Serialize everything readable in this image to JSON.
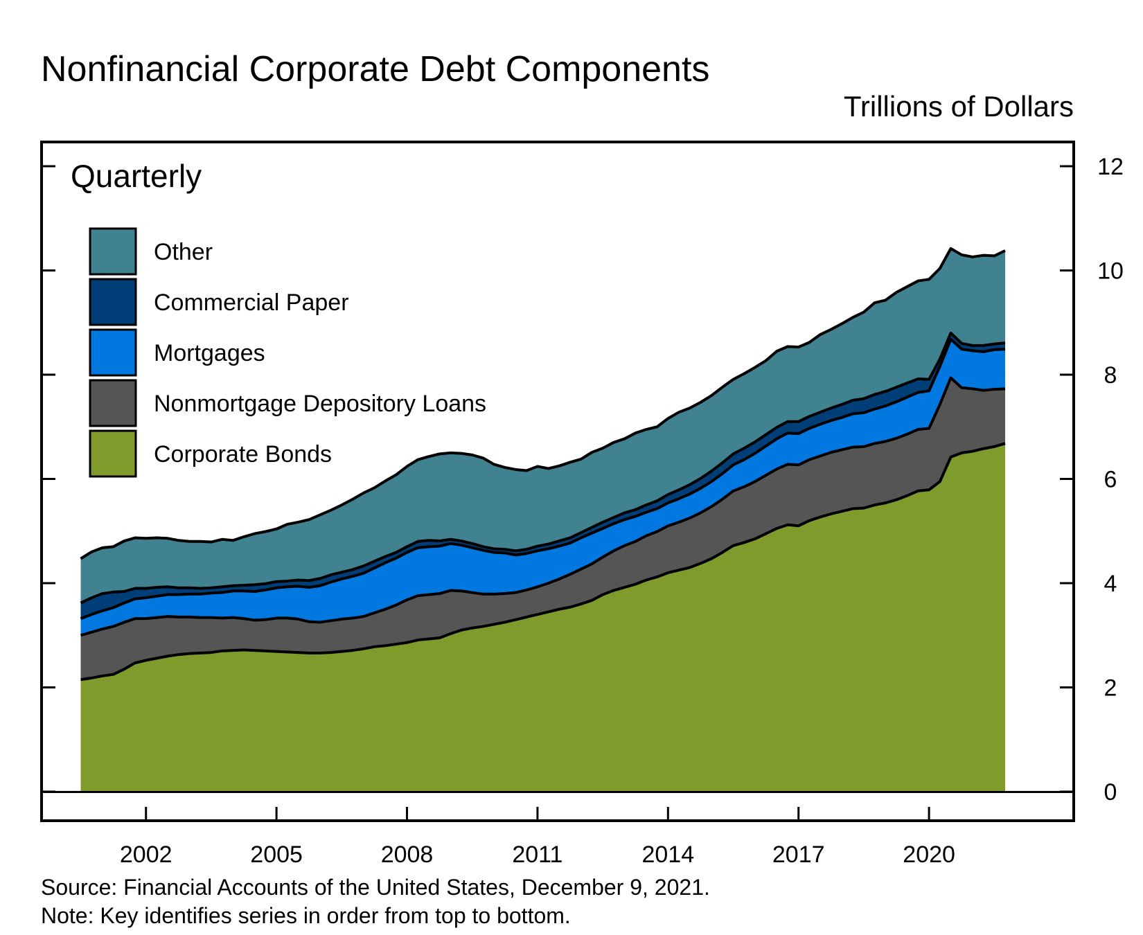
{
  "chart_data": {
    "type": "area",
    "stacked": true,
    "title": "Nonfinancial Corporate Debt Components",
    "units": "Trillions of Dollars",
    "frequency_label": "Quarterly",
    "ylim": [
      0,
      12.5
    ],
    "yticks": [
      0,
      2,
      4,
      6,
      8,
      10,
      12
    ],
    "xlim": [
      1999.6,
      2023.3
    ],
    "xticks": [
      2002,
      2005,
      2008,
      2011,
      2014,
      2017,
      2020
    ],
    "xtick_labels": [
      "2002",
      "2005",
      "2008",
      "2011",
      "2014",
      "2017",
      "2020"
    ],
    "grid": false,
    "legend_position": "top-left",
    "legend_note": "Key identifies series in order from top to bottom.",
    "x": [
      2000.5,
      2000.75,
      2001,
      2001.25,
      2001.5,
      2001.75,
      2002,
      2002.25,
      2002.5,
      2002.75,
      2003,
      2003.25,
      2003.5,
      2003.75,
      2004,
      2004.25,
      2004.5,
      2004.75,
      2005,
      2005.25,
      2005.5,
      2005.75,
      2006,
      2006.25,
      2006.5,
      2006.75,
      2007,
      2007.25,
      2007.5,
      2007.75,
      2008,
      2008.25,
      2008.5,
      2008.75,
      2009,
      2009.25,
      2009.5,
      2009.75,
      2010,
      2010.25,
      2010.5,
      2010.75,
      2011,
      2011.25,
      2011.5,
      2011.75,
      2012,
      2012.25,
      2012.5,
      2012.75,
      2013,
      2013.25,
      2013.5,
      2013.75,
      2014,
      2014.25,
      2014.5,
      2014.75,
      2015,
      2015.25,
      2015.5,
      2015.75,
      2016,
      2016.25,
      2016.5,
      2016.75,
      2017,
      2017.25,
      2017.5,
      2017.75,
      2018,
      2018.25,
      2018.5,
      2018.75,
      2019,
      2019.25,
      2019.5,
      2019.75,
      2020,
      2020.25,
      2020.5,
      2020.75,
      2021,
      2021.25,
      2021.5,
      2021.75
    ],
    "series": [
      {
        "name": "Corporate Bonds",
        "color": "#7f9b2c",
        "values": [
          2.15,
          2.18,
          2.22,
          2.25,
          2.35,
          2.47,
          2.52,
          2.56,
          2.6,
          2.63,
          2.65,
          2.66,
          2.67,
          2.7,
          2.71,
          2.72,
          2.71,
          2.7,
          2.69,
          2.68,
          2.67,
          2.66,
          2.66,
          2.67,
          2.69,
          2.71,
          2.74,
          2.78,
          2.8,
          2.83,
          2.86,
          2.91,
          2.93,
          2.95,
          3.03,
          3.1,
          3.14,
          3.17,
          3.21,
          3.25,
          3.3,
          3.35,
          3.4,
          3.45,
          3.5,
          3.54,
          3.6,
          3.67,
          3.78,
          3.86,
          3.92,
          3.98,
          4.06,
          4.12,
          4.2,
          4.25,
          4.3,
          4.38,
          4.47,
          4.59,
          4.72,
          4.78,
          4.85,
          4.95,
          5.05,
          5.12,
          5.1,
          5.2,
          5.27,
          5.33,
          5.38,
          5.43,
          5.44,
          5.5,
          5.54,
          5.6,
          5.68,
          5.77,
          5.79,
          5.95,
          6.42,
          6.5,
          6.53,
          6.58,
          6.62,
          6.68
        ]
      },
      {
        "name": "Nonmortgage Depository Loans",
        "color": "#555555",
        "values": [
          0.85,
          0.88,
          0.9,
          0.92,
          0.9,
          0.85,
          0.8,
          0.78,
          0.76,
          0.72,
          0.7,
          0.68,
          0.67,
          0.63,
          0.63,
          0.6,
          0.58,
          0.6,
          0.64,
          0.65,
          0.64,
          0.6,
          0.59,
          0.61,
          0.62,
          0.62,
          0.62,
          0.65,
          0.7,
          0.75,
          0.82,
          0.85,
          0.85,
          0.85,
          0.83,
          0.75,
          0.68,
          0.62,
          0.58,
          0.55,
          0.52,
          0.52,
          0.53,
          0.55,
          0.58,
          0.63,
          0.67,
          0.7,
          0.72,
          0.76,
          0.8,
          0.82,
          0.85,
          0.87,
          0.9,
          0.92,
          0.95,
          0.97,
          1.0,
          1.02,
          1.05,
          1.07,
          1.1,
          1.12,
          1.14,
          1.16,
          1.17,
          1.17,
          1.17,
          1.18,
          1.18,
          1.18,
          1.18,
          1.18,
          1.18,
          1.18,
          1.18,
          1.18,
          1.18,
          1.48,
          1.52,
          1.25,
          1.2,
          1.12,
          1.1,
          1.05
        ]
      },
      {
        "name": "Mortgages",
        "color": "#0078e0",
        "values": [
          0.32,
          0.34,
          0.35,
          0.36,
          0.37,
          0.38,
          0.4,
          0.41,
          0.42,
          0.43,
          0.44,
          0.45,
          0.47,
          0.49,
          0.51,
          0.53,
          0.55,
          0.57,
          0.58,
          0.6,
          0.63,
          0.66,
          0.7,
          0.74,
          0.77,
          0.8,
          0.83,
          0.86,
          0.89,
          0.9,
          0.91,
          0.92,
          0.92,
          0.91,
          0.9,
          0.88,
          0.86,
          0.84,
          0.8,
          0.78,
          0.72,
          0.7,
          0.69,
          0.66,
          0.63,
          0.6,
          0.6,
          0.59,
          0.55,
          0.52,
          0.5,
          0.48,
          0.45,
          0.44,
          0.44,
          0.45,
          0.46,
          0.47,
          0.48,
          0.49,
          0.5,
          0.52,
          0.54,
          0.56,
          0.58,
          0.6,
          0.6,
          0.6,
          0.61,
          0.61,
          0.62,
          0.64,
          0.65,
          0.66,
          0.68,
          0.7,
          0.71,
          0.71,
          0.72,
          0.73,
          0.74,
          0.74,
          0.73,
          0.74,
          0.76,
          0.76
        ]
      },
      {
        "name": "Commercial Paper",
        "color": "#003e78",
        "values": [
          0.3,
          0.32,
          0.33,
          0.3,
          0.22,
          0.2,
          0.18,
          0.17,
          0.15,
          0.13,
          0.12,
          0.11,
          0.1,
          0.11,
          0.1,
          0.11,
          0.13,
          0.12,
          0.12,
          0.11,
          0.12,
          0.13,
          0.14,
          0.14,
          0.13,
          0.13,
          0.14,
          0.13,
          0.12,
          0.11,
          0.11,
          0.12,
          0.12,
          0.1,
          0.08,
          0.08,
          0.08,
          0.07,
          0.07,
          0.07,
          0.08,
          0.08,
          0.09,
          0.09,
          0.1,
          0.1,
          0.1,
          0.11,
          0.12,
          0.12,
          0.13,
          0.13,
          0.14,
          0.15,
          0.16,
          0.17,
          0.18,
          0.19,
          0.2,
          0.21,
          0.21,
          0.22,
          0.22,
          0.22,
          0.22,
          0.22,
          0.23,
          0.23,
          0.23,
          0.24,
          0.25,
          0.26,
          0.27,
          0.28,
          0.28,
          0.28,
          0.27,
          0.26,
          0.22,
          0.14,
          0.12,
          0.11,
          0.1,
          0.12,
          0.11,
          0.12
        ]
      },
      {
        "name": "Other",
        "color": "#408290",
        "values": [
          0.85,
          0.88,
          0.88,
          0.87,
          0.97,
          0.97,
          0.96,
          0.95,
          0.93,
          0.91,
          0.89,
          0.9,
          0.88,
          0.91,
          0.87,
          0.93,
          0.98,
          1.0,
          1.01,
          1.09,
          1.11,
          1.17,
          1.22,
          1.24,
          1.29,
          1.35,
          1.4,
          1.41,
          1.45,
          1.49,
          1.54,
          1.57,
          1.61,
          1.67,
          1.66,
          1.68,
          1.7,
          1.7,
          1.62,
          1.57,
          1.56,
          1.51,
          1.53,
          1.45,
          1.44,
          1.45,
          1.41,
          1.44,
          1.42,
          1.44,
          1.42,
          1.47,
          1.45,
          1.42,
          1.46,
          1.49,
          1.47,
          1.46,
          1.45,
          1.45,
          1.43,
          1.43,
          1.43,
          1.42,
          1.46,
          1.44,
          1.43,
          1.42,
          1.49,
          1.51,
          1.55,
          1.59,
          1.66,
          1.76,
          1.75,
          1.82,
          1.85,
          1.88,
          1.92,
          1.74,
          1.62,
          1.7,
          1.7,
          1.73,
          1.69,
          1.77
        ]
      }
    ]
  },
  "footer": {
    "source": "Source: Financial Accounts of the United States, December 9, 2021.",
    "note": "Note: Key identifies series in order from top to bottom."
  }
}
